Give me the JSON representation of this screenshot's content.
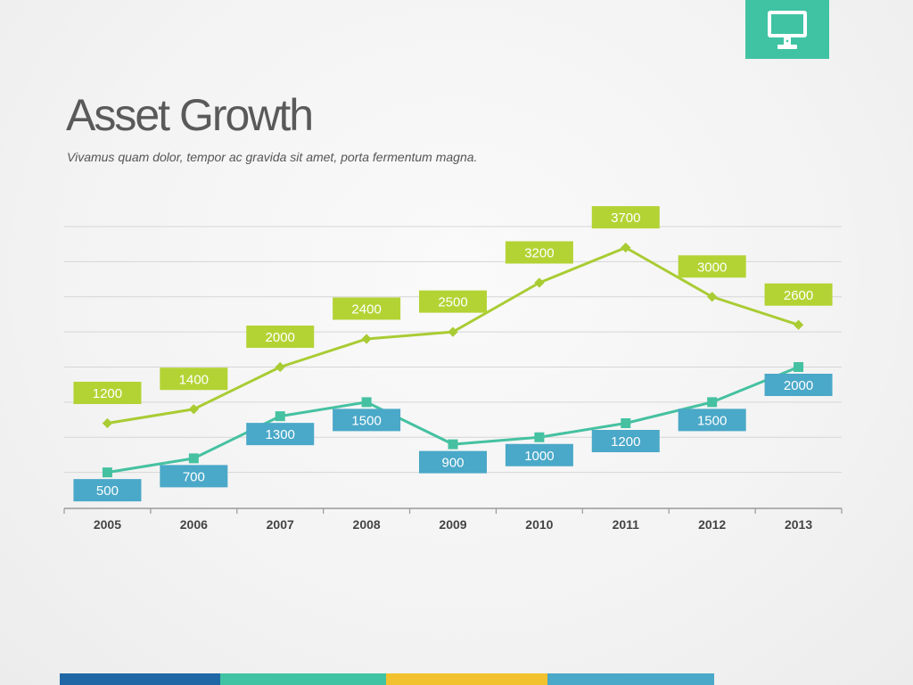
{
  "page": {
    "title": "Asset Growth",
    "subtitle": "Vivamus quam dolor, tempor ac gravida sit amet, porta fermentum magna.",
    "badge_icon": "monitor-icon",
    "badge_color": "#3fc3a3",
    "bottom_strip_colors": [
      "#2067a6",
      "#3fc3a3",
      "#f2c12e",
      "#4aa8c8"
    ]
  },
  "chart_data": {
    "type": "line",
    "categories": [
      "2005",
      "2006",
      "2007",
      "2008",
      "2009",
      "2010",
      "2011",
      "2012",
      "2013"
    ],
    "series": [
      {
        "values": [
          1200,
          1400,
          2000,
          2400,
          2500,
          3200,
          3700,
          3000,
          2600
        ],
        "color": "#a9cc33",
        "label_color": "#b3d334",
        "marker": "diamond"
      },
      {
        "values": [
          500,
          700,
          1300,
          1500,
          900,
          1000,
          1200,
          1500,
          2000
        ],
        "color": "#45c1a1",
        "label_color": "#4aa8c8",
        "marker": "square"
      }
    ],
    "ylim": [
      0,
      4000
    ],
    "grid": true,
    "legend": "none"
  }
}
